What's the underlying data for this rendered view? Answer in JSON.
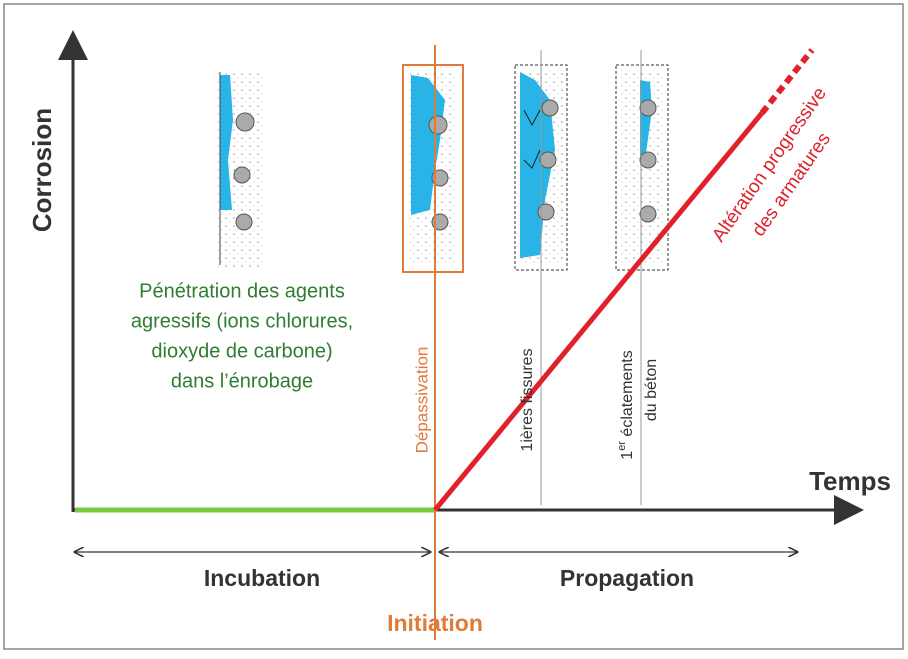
{
  "axis_y": "Corrosion",
  "axis_x": "Temps",
  "penetration": [
    "Pénétration des agents",
    "agressifs (ions chlorures,",
    "dioxyde de carbone)",
    "dans l’énrobage"
  ],
  "depassivation": "Dépassivation",
  "fissures": "1ières fissures",
  "eclatements": {
    "number": "1",
    "superscript": "er",
    "rest": " éclatements",
    "line2": "du béton"
  },
  "alteration": [
    "Altération progressive",
    "des armatures"
  ],
  "phases": {
    "incubation": "Incubation",
    "propagation": "Propagation",
    "initiation": "Initiation"
  }
}
